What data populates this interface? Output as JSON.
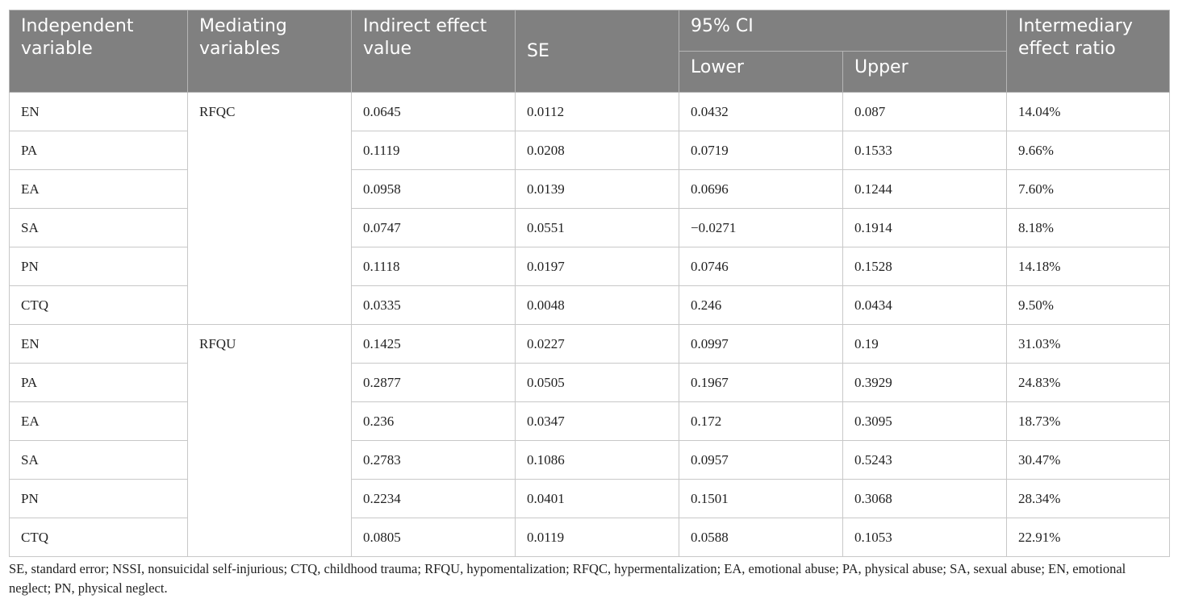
{
  "header": {
    "independent": "Independent variable",
    "mediating": "Mediating variables",
    "indirect": "Indirect effect value",
    "se": "SE",
    "ci": "95% CI",
    "lower": "Lower",
    "upper": "Upper",
    "ratio": "Intermediary effect ratio"
  },
  "groups": [
    {
      "mediator": "RFQC",
      "rows": [
        [
          "EN",
          "0.0645",
          "0.0112",
          "0.0432",
          "0.087",
          "14.04%"
        ],
        [
          "PA",
          "0.1119",
          "0.0208",
          "0.0719",
          "0.1533",
          "9.66%"
        ],
        [
          "EA",
          "0.0958",
          "0.0139",
          "0.0696",
          "0.1244",
          "7.60%"
        ],
        [
          "SA",
          "0.0747",
          "0.0551",
          "−0.0271",
          "0.1914",
          "8.18%"
        ],
        [
          "PN",
          "0.1118",
          "0.0197",
          "0.0746",
          "0.1528",
          "14.18%"
        ],
        [
          "CTQ",
          "0.0335",
          "0.0048",
          "0.246",
          "0.0434",
          "9.50%"
        ]
      ]
    },
    {
      "mediator": "RFQU",
      "rows": [
        [
          "EN",
          "0.1425",
          "0.0227",
          "0.0997",
          "0.19",
          "31.03%"
        ],
        [
          "PA",
          "0.2877",
          "0.0505",
          "0.1967",
          "0.3929",
          "24.83%"
        ],
        [
          "EA",
          "0.236",
          "0.0347",
          "0.172",
          "0.3095",
          "18.73%"
        ],
        [
          "SA",
          "0.2783",
          "0.1086",
          "0.0957",
          "0.5243",
          "30.47%"
        ],
        [
          "PN",
          "0.2234",
          "0.0401",
          "0.1501",
          "0.3068",
          "28.34%"
        ],
        [
          "CTQ",
          "0.0805",
          "0.0119",
          "0.0588",
          "0.1053",
          "22.91%"
        ]
      ]
    }
  ],
  "footnote": "SE, standard error; NSSI, nonsuicidal self-injurious; CTQ, childhood trauma; RFQU, hypomentalization; RFQC, hypermentalization; EA, emotional abuse; PA, physical abuse; SA, sexual abuse; EN, emotional neglect; PN, physical neglect."
}
